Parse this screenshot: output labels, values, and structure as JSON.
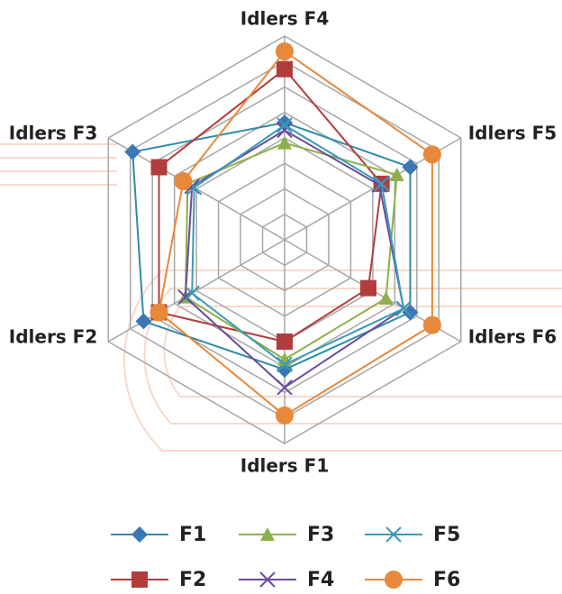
{
  "chart_data": {
    "type": "radar",
    "categories": [
      "Idlers F1",
      "Idlers F2",
      "Idlers F3",
      "Idlers F4",
      "Idlers F5",
      "Idlers F6"
    ],
    "ylim": [
      0,
      8
    ],
    "yticks": [
      0,
      1,
      2,
      3,
      4,
      5,
      6,
      7,
      8
    ],
    "grid": true,
    "legend": "bottom",
    "series": [
      {
        "name": "F1",
        "color": "#3a78b5",
        "line_color": "#2e8aa8",
        "marker": "diamond",
        "values": [
          5.1,
          6.4,
          6.9,
          4.6,
          5.7,
          5.7
        ]
      },
      {
        "name": "F2",
        "color": "#b23c3c",
        "line_color": "#b23c3c",
        "marker": "square",
        "values": [
          4.0,
          5.7,
          5.7,
          6.7,
          4.4,
          3.8
        ]
      },
      {
        "name": "F3",
        "color": "#8db04a",
        "line_color": "#8db04a",
        "marker": "triangle",
        "values": [
          4.7,
          4.5,
          4.4,
          3.8,
          5.1,
          4.6
        ]
      },
      {
        "name": "F4",
        "color": "#6a4c9c",
        "line_color": "#6a4c9c",
        "marker": "x",
        "values": [
          5.8,
          4.5,
          4.2,
          4.3,
          4.3,
          5.4
        ]
      },
      {
        "name": "F5",
        "color": "#3a9ab8",
        "line_color": "#3a9ab8",
        "marker": "x",
        "values": [
          4.9,
          4.2,
          4.1,
          4.5,
          4.4,
          5.4
        ]
      },
      {
        "name": "F6",
        "color": "#e8883a",
        "line_color": "#e8883a",
        "marker": "circle",
        "values": [
          6.9,
          5.7,
          4.6,
          7.4,
          6.7,
          6.7
        ]
      }
    ]
  }
}
